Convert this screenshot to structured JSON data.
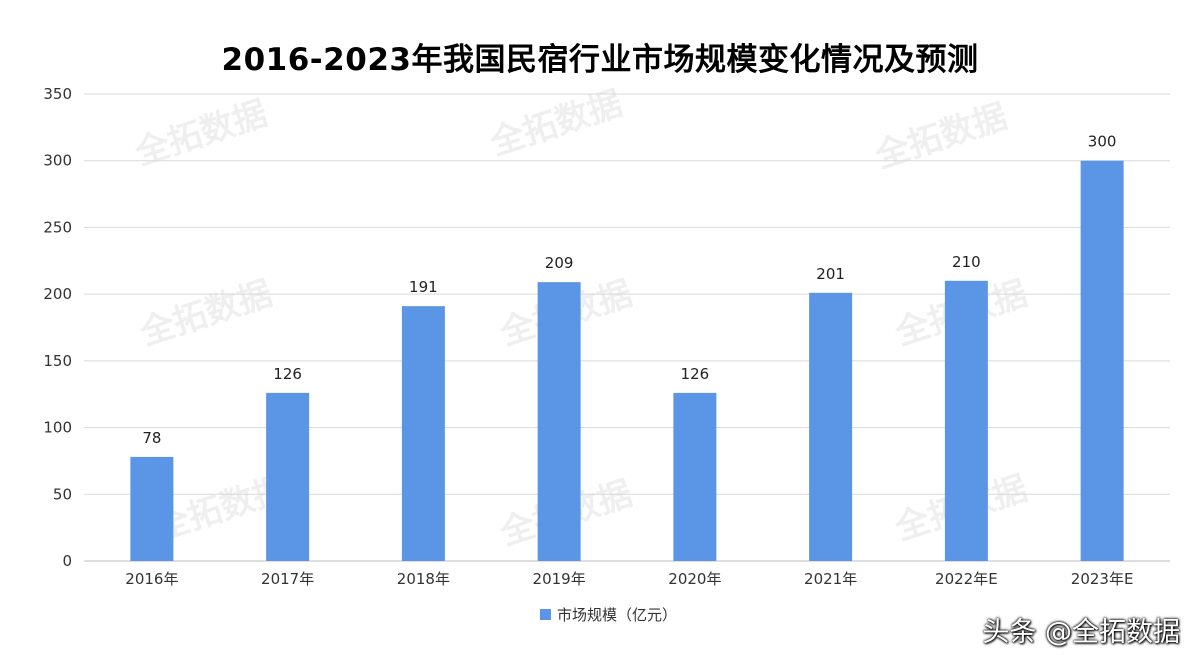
{
  "watermark": "全拓数据",
  "brand_text": "头条 @全拓数据",
  "colors": {
    "bar": "#5b95e5",
    "grid": "#d9d9d9",
    "axis": "#bfbfbf"
  },
  "chart_data": {
    "type": "bar",
    "title": "2016-2023年我国民宿行业市场规模变化情况及预测",
    "categories": [
      "2016年",
      "2017年",
      "2018年",
      "2019年",
      "2020年",
      "2021年",
      "2022年E",
      "2023年E"
    ],
    "series": [
      {
        "name": "市场规模（亿元）",
        "values": [
          78,
          126,
          191,
          209,
          126,
          201,
          210,
          300
        ]
      }
    ],
    "ylim": [
      0,
      350
    ],
    "yticks": [
      0,
      50,
      100,
      150,
      200,
      250,
      300,
      350
    ],
    "grid": true,
    "legend": "bottom-center"
  }
}
